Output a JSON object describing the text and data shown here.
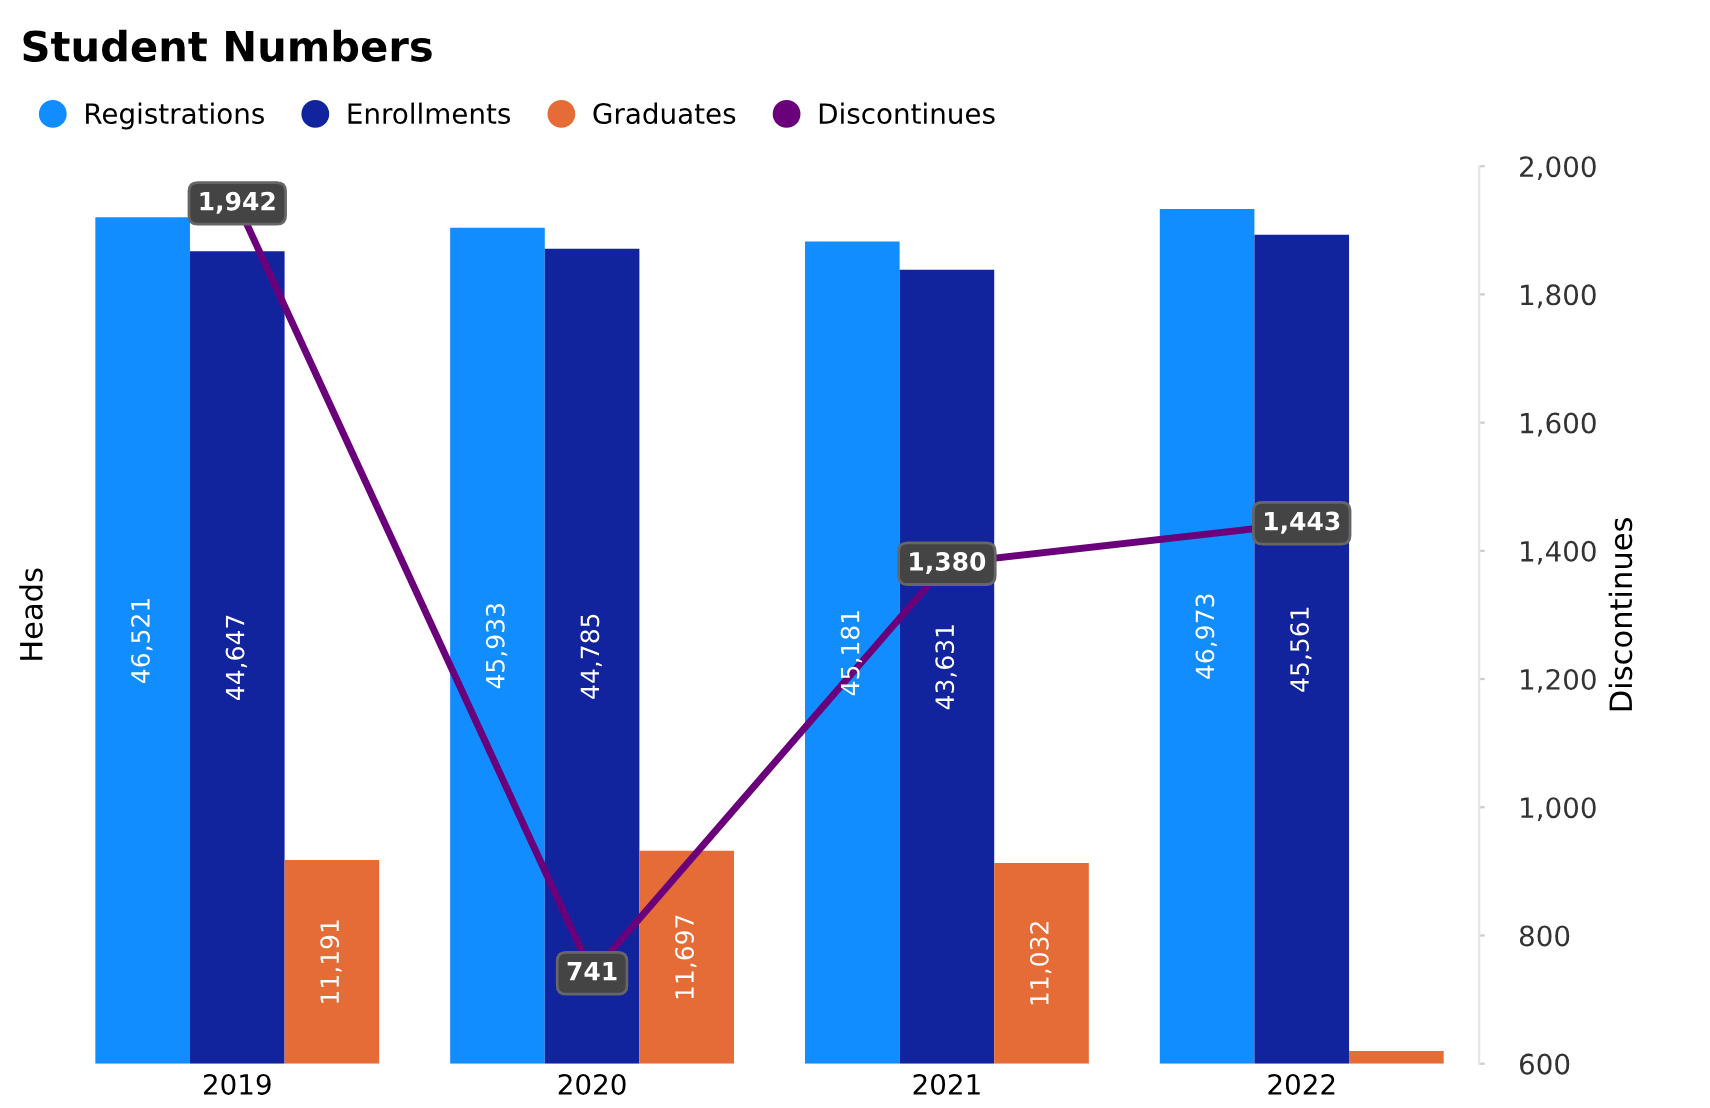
{
  "chart_data": {
    "type": "bar",
    "title": "Student Numbers",
    "ylabel": "Heads",
    "y2label": "Discontinues",
    "categories": [
      "2019",
      "2020",
      "2021",
      "2022"
    ],
    "series": [
      {
        "name": "Registrations",
        "color": "#118dff",
        "values": [
          46521,
          45933,
          45181,
          46973
        ],
        "value_labels": [
          "46,521",
          "45,933",
          "45,181",
          "46,973"
        ]
      },
      {
        "name": "Enrollments",
        "color": "#12239e",
        "values": [
          44647,
          44785,
          43631,
          45561
        ],
        "value_labels": [
          "44,647",
          "44,785",
          "43,631",
          "45,561"
        ]
      },
      {
        "name": "Graduates",
        "color": "#e66c37",
        "values": [
          11191,
          11697,
          11032,
          700
        ],
        "value_labels": [
          "11,191",
          "11,697",
          "11,032",
          null
        ]
      },
      {
        "name": "Discontinues",
        "type": "line",
        "axis": "y2",
        "color": "#6b007b",
        "values": [
          1942,
          741,
          1380,
          1443
        ],
        "value_labels": [
          "1,942",
          "741",
          "1,380",
          "1,443"
        ]
      }
    ],
    "y2lim": [
      600,
      2000
    ],
    "y2ticks": [
      {
        "value": 600,
        "label": "600"
      },
      {
        "value": 800,
        "label": "800"
      },
      {
        "value": 1000,
        "label": "1,000"
      },
      {
        "value": 1200,
        "label": "1,200"
      },
      {
        "value": 1400,
        "label": "1,400"
      },
      {
        "value": 1600,
        "label": "1,600"
      },
      {
        "value": 1800,
        "label": "1,800"
      },
      {
        "value": 2000,
        "label": "2,000"
      }
    ],
    "tick_labels": "x",
    "legend": "top left",
    "line_style": "solid",
    "grid": false
  }
}
